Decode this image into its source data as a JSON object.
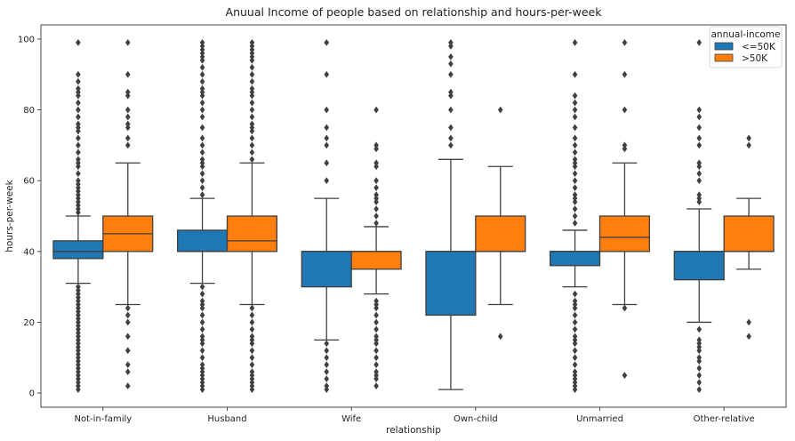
{
  "chart_data": {
    "type": "box",
    "title": "Anuual Income of people based on relationship and hours-per-week",
    "xlabel": "relationship",
    "ylabel": "hours-per-week",
    "ylim": [
      -4,
      104
    ],
    "yticks": [
      0,
      20,
      40,
      60,
      80,
      100
    ],
    "categories": [
      "Not-in-family",
      "Husband",
      "Wife",
      "Own-child",
      "Unmarried",
      "Other-relative"
    ],
    "legend": {
      "title": "annual-income",
      "placement": "top-right"
    },
    "grid": false,
    "series": [
      {
        "name": "<=50K",
        "color": "#1f77b4",
        "boxes": [
          {
            "q1": 38,
            "median": 40,
            "q3": 43,
            "whisker_low": 31,
            "whisker_high": 50,
            "outliers": [
              1,
              2,
              3,
              4,
              5,
              6,
              7,
              8,
              9,
              10,
              11,
              12,
              13,
              14,
              15,
              16,
              17,
              18,
              19,
              20,
              21,
              22,
              23,
              24,
              25,
              26,
              27,
              28,
              29,
              30,
              51,
              52,
              53,
              54,
              55,
              56,
              57,
              58,
              59,
              60,
              62,
              64,
              65,
              66,
              68,
              70,
              72,
              74,
              75,
              76,
              78,
              80,
              82,
              84,
              85,
              86,
              88,
              90,
              99
            ]
          },
          {
            "q1": 40,
            "median": 40,
            "q3": 46,
            "whisker_low": 31,
            "whisker_high": 55,
            "outliers": [
              1,
              2,
              3,
              4,
              5,
              6,
              7,
              8,
              10,
              12,
              14,
              15,
              16,
              18,
              20,
              22,
              24,
              25,
              26,
              28,
              30,
              56,
              58,
              60,
              62,
              64,
              65,
              66,
              68,
              70,
              72,
              75,
              78,
              80,
              82,
              84,
              85,
              86,
              88,
              90,
              92,
              94,
              95,
              96,
              97,
              98,
              99
            ]
          },
          {
            "q1": 30,
            "median": 40,
            "q3": 40,
            "whisker_low": 15,
            "whisker_high": 55,
            "outliers": [
              1,
              2,
              4,
              6,
              8,
              10,
              12,
              14,
              60,
              65,
              70,
              72,
              75,
              80,
              90,
              99
            ]
          },
          {
            "q1": 22,
            "median": 40,
            "q3": 40,
            "whisker_low": 1,
            "whisker_high": 66,
            "outliers": [
              70,
              72,
              75,
              80,
              84,
              85,
              90,
              93,
              95,
              98,
              99
            ]
          },
          {
            "q1": 36,
            "median": 40,
            "q3": 40,
            "whisker_low": 30,
            "whisker_high": 46,
            "outliers": [
              1,
              2,
              3,
              4,
              5,
              6,
              8,
              10,
              12,
              14,
              15,
              16,
              18,
              20,
              22,
              24,
              25,
              26,
              28,
              48,
              50,
              52,
              54,
              55,
              56,
              58,
              60,
              62,
              64,
              65,
              66,
              68,
              70,
              72,
              75,
              78,
              80,
              82,
              84,
              90,
              99
            ]
          },
          {
            "q1": 32,
            "median": 40,
            "q3": 40,
            "whisker_low": 20,
            "whisker_high": 52,
            "outliers": [
              1,
              3,
              5,
              7,
              9,
              10,
              12,
              13,
              14,
              15,
              18,
              54,
              55,
              56,
              60,
              62,
              64,
              65,
              70,
              72,
              75,
              78,
              80,
              99
            ]
          }
        ]
      },
      {
        "name": ">50K",
        "color": "#ff7f0e",
        "boxes": [
          {
            "q1": 40,
            "median": 45,
            "q3": 50,
            "whisker_low": 25,
            "whisker_high": 65,
            "outliers": [
              2,
              6,
              8,
              12,
              16,
              20,
              22,
              24,
              70,
              72,
              75,
              76,
              78,
              80,
              84,
              85,
              90,
              99
            ]
          },
          {
            "q1": 40,
            "median": 43,
            "q3": 50,
            "whisker_low": 25,
            "whisker_high": 65,
            "outliers": [
              1,
              2,
              3,
              4,
              5,
              6,
              8,
              10,
              12,
              14,
              15,
              16,
              18,
              20,
              22,
              24,
              66,
              68,
              70,
              72,
              74,
              75,
              76,
              78,
              80,
              82,
              84,
              85,
              86,
              88,
              90,
              92,
              94,
              95,
              96,
              97,
              98,
              99
            ]
          },
          {
            "q1": 35,
            "median": 40,
            "q3": 40,
            "whisker_low": 28,
            "whisker_high": 47,
            "outliers": [
              2,
              4,
              5,
              6,
              8,
              10,
              12,
              14,
              15,
              16,
              18,
              20,
              22,
              24,
              25,
              26,
              48,
              50,
              52,
              54,
              55,
              56,
              58,
              60,
              64,
              65,
              69,
              70,
              80
            ]
          },
          {
            "q1": 40,
            "median": 40,
            "q3": 50,
            "whisker_low": 25,
            "whisker_high": 64,
            "outliers": [
              16,
              80
            ]
          },
          {
            "q1": 40,
            "median": 44,
            "q3": 50,
            "whisker_low": 25,
            "whisker_high": 65,
            "outliers": [
              5,
              24,
              69,
              70,
              80,
              90,
              99
            ]
          },
          {
            "q1": 40,
            "median": 40,
            "q3": 50,
            "whisker_low": 35,
            "whisker_high": 55,
            "outliers": [
              16,
              20,
              70,
              72
            ]
          }
        ]
      }
    ]
  }
}
